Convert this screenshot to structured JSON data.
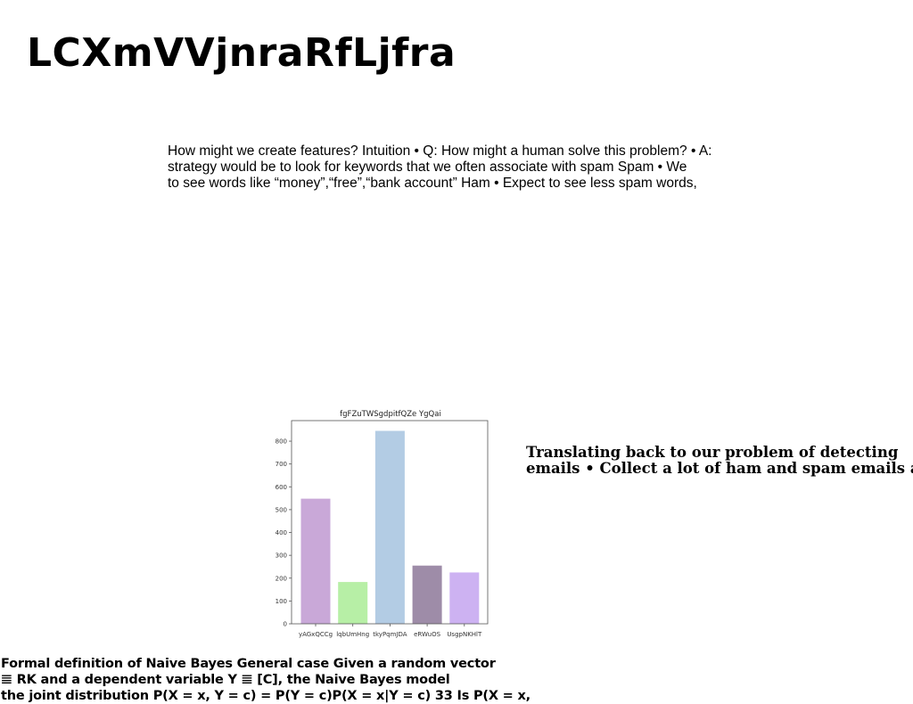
{
  "slide": {
    "title": "LCXmVVjnraRfLjfra",
    "intro_lines": [
      "How might we create features? Intuition • Q: How might a human solve this problem? • A:",
      "strategy would be to look for keywords that we often associate with spam Spam • We",
      "to see words like “money”,“free”,“bank account” Ham • Expect to see less spam words,"
    ],
    "side_lines": [
      "Translating back to our problem of detecting",
      "emails • Collect a lot of ham and spam emails as"
    ],
    "formal_lines": [
      "Formal definition of Naive Bayes General case Given a random vector",
      "𝌆 RK and a dependent variable Y 𝌆 [C], the Naive Bayes model",
      "the joint distribution P(X = x, Y = c) = P(Y = c)P(X = x|Y = c) 33 Is P(X = x,"
    ]
  },
  "chart_data": {
    "type": "bar",
    "title": "fgFZuTWSgdpitfQZe YgQai",
    "xlabel": "",
    "ylabel": "",
    "categories": [
      "yAGxQCCg",
      "lqbUmHng",
      "tkyPqmJDA",
      "eRWuOS",
      "UsgpNKHlT"
    ],
    "values": [
      548,
      183,
      845,
      255,
      225
    ],
    "colors": [
      "#c9a8d8",
      "#b7efa6",
      "#b3cce4",
      "#9e8ca8",
      "#cdb2f2"
    ],
    "ylim": [
      0,
      890
    ],
    "yticks": [
      0,
      100,
      200,
      300,
      400,
      500,
      600,
      700,
      800
    ],
    "grid": false,
    "legend": "none"
  }
}
